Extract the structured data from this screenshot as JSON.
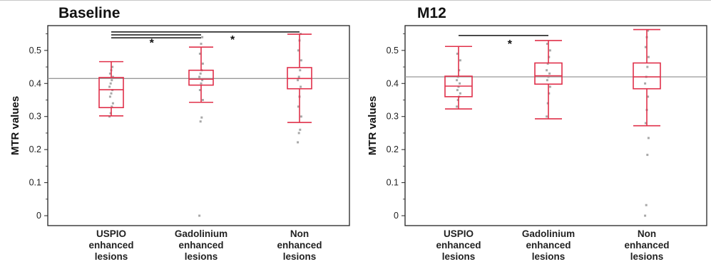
{
  "chart_data": [
    {
      "type": "box",
      "title": "Baseline",
      "ylabel": "MTR values",
      "ylim": [
        -0.03,
        0.575
      ],
      "yticks": [
        0,
        0.1,
        0.2,
        0.3,
        0.4,
        0.5
      ],
      "ytick_labels": [
        "0",
        "0.1",
        "0.2",
        "0.3",
        "0.4",
        "0.5"
      ],
      "reference_line": 0.415,
      "categories": [
        [
          "USPIO",
          "enhanced",
          "lesions"
        ],
        [
          "Gadolinium",
          "enhanced",
          "lesions"
        ],
        [
          "Non",
          "enhanced",
          "lesions"
        ]
      ],
      "boxes": [
        {
          "min": 0.302,
          "q1": 0.327,
          "median": 0.381,
          "q3": 0.418,
          "max": 0.466,
          "points": [
            0.3,
            0.31,
            0.33,
            0.34,
            0.36,
            0.37,
            0.38,
            0.39,
            0.4,
            0.41,
            0.42,
            0.43,
            0.44,
            0.45
          ]
        },
        {
          "min": 0.343,
          "q1": 0.395,
          "median": 0.413,
          "q3": 0.44,
          "max": 0.51,
          "points": [
            0.0,
            0.285,
            0.297,
            0.35,
            0.38,
            0.4,
            0.41,
            0.42,
            0.43,
            0.44,
            0.46,
            0.49,
            0.52,
            0.54
          ]
        },
        {
          "min": 0.282,
          "q1": 0.384,
          "median": 0.415,
          "q3": 0.448,
          "max": 0.549,
          "points": [
            0.222,
            0.25,
            0.26,
            0.3,
            0.33,
            0.36,
            0.39,
            0.41,
            0.42,
            0.44,
            0.47,
            0.5,
            0.53,
            0.55
          ]
        }
      ],
      "significance": [
        {
          "from": 0,
          "to": 1,
          "y": 0.547,
          "label": "*"
        },
        {
          "from": 0,
          "to": 2,
          "y": 0.556,
          "label": "*"
        }
      ],
      "star_labels": [
        {
          "label": "*",
          "x": 1.45,
          "y": 0.533
        },
        {
          "label": "*",
          "x": 2.35,
          "y": 0.543
        }
      ],
      "extra_lines": [
        {
          "from": 0,
          "to": 1,
          "y": 0.538
        }
      ]
    },
    {
      "type": "box",
      "title": "M12",
      "ylabel": "MTR values",
      "ylim": [
        -0.03,
        0.575
      ],
      "yticks": [
        0,
        0.1,
        0.2,
        0.3,
        0.4,
        0.5
      ],
      "ytick_labels": [
        "0",
        "0.1",
        "0.2",
        "0.3",
        "0.4",
        "0.5"
      ],
      "reference_line": 0.42,
      "categories": [
        [
          "USPIO",
          "enhanced",
          "lesions"
        ],
        [
          "Gadolinium",
          "enhanced",
          "lesions"
        ],
        [
          "Non",
          "enhanced",
          "lesions"
        ]
      ],
      "boxes": [
        {
          "min": 0.323,
          "q1": 0.36,
          "median": 0.392,
          "q3": 0.422,
          "max": 0.512,
          "points": [
            0.33,
            0.35,
            0.36,
            0.37,
            0.38,
            0.39,
            0.4,
            0.41,
            0.42,
            0.44,
            0.47,
            0.49
          ]
        },
        {
          "min": 0.293,
          "q1": 0.398,
          "median": 0.423,
          "q3": 0.462,
          "max": 0.53,
          "points": [
            0.3,
            0.34,
            0.37,
            0.39,
            0.41,
            0.42,
            0.43,
            0.44,
            0.46,
            0.48,
            0.5,
            0.52
          ]
        },
        {
          "min": 0.272,
          "q1": 0.384,
          "median": 0.42,
          "q3": 0.462,
          "max": 0.563,
          "points": [
            0.0,
            0.032,
            0.184,
            0.235,
            0.28,
            0.32,
            0.36,
            0.4,
            0.42,
            0.45,
            0.48,
            0.51,
            0.54,
            0.56
          ]
        }
      ],
      "significance": [
        {
          "from": 0,
          "to": 1,
          "y": 0.545,
          "label": "*"
        }
      ],
      "star_labels": [
        {
          "label": "*",
          "x": 1.57,
          "y": 0.53
        }
      ],
      "extra_lines": []
    }
  ],
  "colors": {
    "box": "#e0304a",
    "points": "#a8a8a8",
    "reference_line": "#999999",
    "axis": "#222222",
    "significance": "#111111"
  }
}
